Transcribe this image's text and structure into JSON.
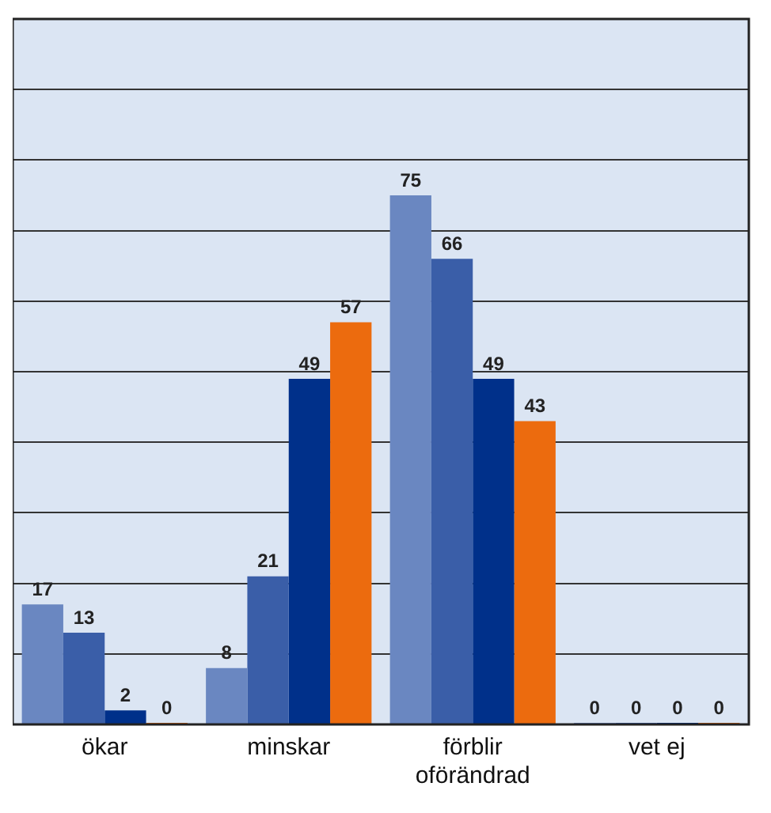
{
  "chart_data": {
    "type": "bar",
    "categories": [
      "ökar",
      "minskar",
      "förblir oförändrad",
      "vet ej"
    ],
    "series": [
      {
        "color": "#6a87c1",
        "values": [
          17,
          8,
          75,
          0
        ]
      },
      {
        "color": "#3a5ea8",
        "values": [
          13,
          21,
          66,
          0
        ]
      },
      {
        "color": "#00308a",
        "values": [
          2,
          49,
          49,
          0
        ]
      },
      {
        "color": "#ec6b0e",
        "values": [
          0,
          57,
          43,
          0
        ]
      }
    ],
    "ylim": [
      0,
      100
    ],
    "yticks": [
      0,
      10,
      20,
      30,
      40,
      50,
      60,
      70,
      80,
      90,
      100
    ],
    "grid": "y",
    "tick_labels": "x",
    "data_labels": true,
    "legend": false
  }
}
